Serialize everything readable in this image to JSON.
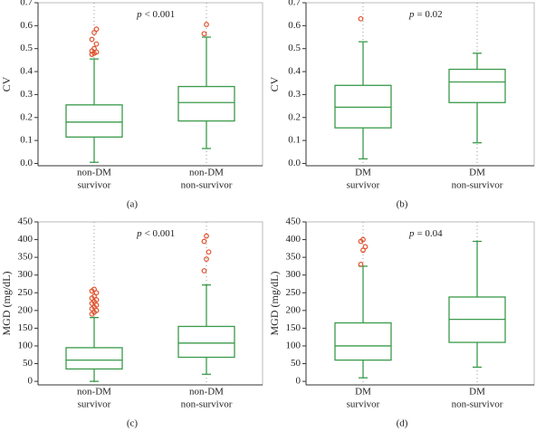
{
  "chart_data": [
    {
      "type": "box",
      "panel_label": "(a)",
      "y_label": "CV",
      "annotation": [
        "p",
        "< 0.001"
      ],
      "categories": [
        [
          "non-DM",
          "survivor"
        ],
        [
          "non-DM",
          "non-survivor"
        ]
      ],
      "boxes": [
        {
          "min": 0.005,
          "q1": 0.115,
          "median": 0.18,
          "q3": 0.255,
          "max": 0.455,
          "outliers": [
            0.475,
            0.48,
            0.485,
            0.49,
            0.5,
            0.52,
            0.54,
            0.57,
            0.585
          ]
        },
        {
          "min": 0.065,
          "q1": 0.185,
          "median": 0.265,
          "q3": 0.335,
          "max": 0.55,
          "outliers": [
            0.565,
            0.605
          ]
        }
      ],
      "ylim": [
        -0.01,
        0.7
      ],
      "yticks": [
        {
          "value": 0,
          "label": "0.0"
        },
        0.1,
        0.2,
        0.3,
        0.4,
        0.5,
        0.6,
        0.7
      ],
      "color": "#3a9a4a",
      "outlier_color": "#e0502a"
    },
    {
      "type": "box",
      "panel_label": "(b)",
      "y_label": "CV",
      "annotation": [
        "p",
        "= 0.02"
      ],
      "categories": [
        [
          "DM",
          "survivor"
        ],
        [
          "DM",
          "non-survivor"
        ]
      ],
      "boxes": [
        {
          "min": 0.02,
          "q1": 0.155,
          "median": 0.245,
          "q3": 0.34,
          "max": 0.53,
          "outliers": [
            0.63
          ]
        },
        {
          "min": 0.09,
          "q1": 0.265,
          "median": 0.355,
          "q3": 0.41,
          "max": 0.48,
          "outliers": []
        }
      ],
      "ylim": [
        -0.01,
        0.7
      ],
      "yticks": [
        {
          "value": 0,
          "label": "0.0"
        },
        0.1,
        0.2,
        0.3,
        0.4,
        0.5,
        0.6,
        0.7
      ],
      "color": "#3a9a4a",
      "outlier_color": "#e0502a"
    },
    {
      "type": "box",
      "panel_label": "(c)",
      "y_label": "MGD (mg/dL)",
      "annotation": [
        "p",
        "< 0.001"
      ],
      "categories": [
        [
          "non-DM",
          "survivor"
        ],
        [
          "non-DM",
          "non-survivor"
        ]
      ],
      "boxes": [
        {
          "min": 0,
          "q1": 35,
          "median": 60,
          "q3": 95,
          "max": 180,
          "outliers": [
            190,
            195,
            200,
            205,
            210,
            215,
            220,
            225,
            230,
            235,
            240,
            250,
            255,
            260
          ]
        },
        {
          "min": 20,
          "q1": 68,
          "median": 108,
          "q3": 155,
          "max": 272,
          "outliers": [
            312,
            345,
            365,
            395,
            410
          ]
        }
      ],
      "ylim": [
        -10,
        450
      ],
      "yticks": [
        0,
        50,
        100,
        150,
        200,
        250,
        300,
        350,
        400,
        450
      ],
      "color": "#3a9a4a",
      "outlier_color": "#e0502a"
    },
    {
      "type": "box",
      "panel_label": "(d)",
      "y_label": "MGD (mg/dL)",
      "annotation": [
        "p",
        "= 0.04"
      ],
      "categories": [
        [
          "DM",
          "survivor"
        ],
        [
          "DM",
          "non-survivor"
        ]
      ],
      "boxes": [
        {
          "min": 10,
          "q1": 60,
          "median": 100,
          "q3": 165,
          "max": 325,
          "outliers": [
            330,
            370,
            380,
            395,
            400
          ]
        },
        {
          "min": 40,
          "q1": 110,
          "median": 175,
          "q3": 238,
          "max": 395,
          "outliers": []
        }
      ],
      "ylim": [
        -10,
        450
      ],
      "yticks": [
        0,
        50,
        100,
        150,
        200,
        250,
        300,
        350,
        400,
        450
      ],
      "color": "#3a9a4a",
      "outlier_color": "#e0502a"
    }
  ]
}
